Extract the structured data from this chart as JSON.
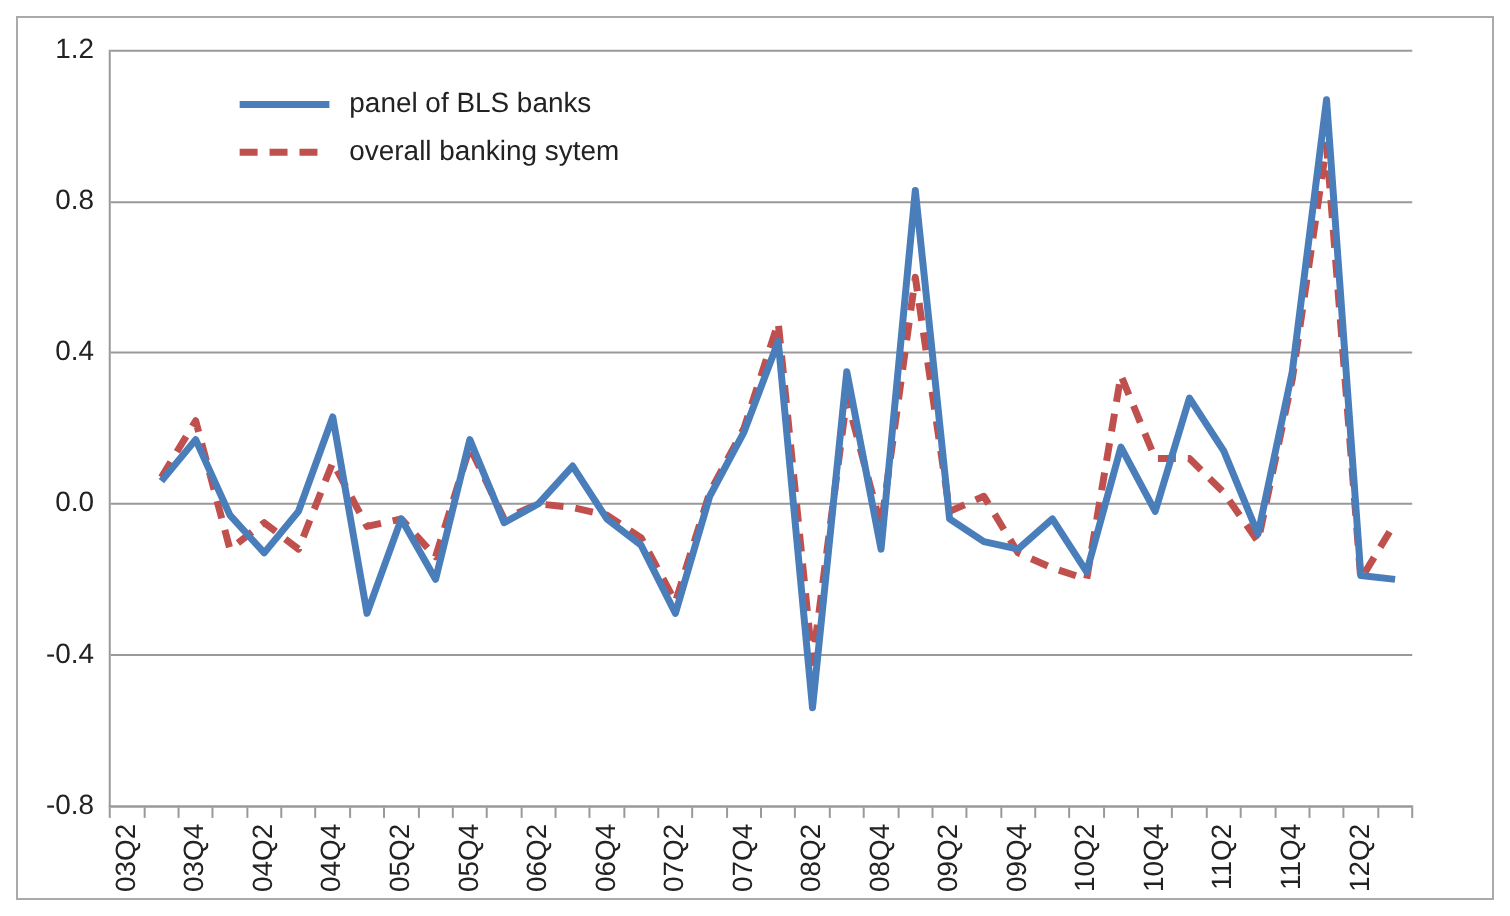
{
  "chart_data": {
    "type": "line",
    "categories": [
      "03Q2",
      null,
      "03Q4",
      null,
      "04Q2",
      null,
      "04Q4",
      null,
      "05Q2",
      null,
      "05Q4",
      null,
      "06Q2",
      null,
      "06Q4",
      null,
      "07Q2",
      null,
      "07Q4",
      null,
      "08Q2",
      null,
      "08Q4",
      null,
      "09Q2",
      null,
      "09Q4",
      null,
      "10Q2",
      null,
      "10Q4",
      null,
      "11Q2",
      null,
      "11Q4",
      null,
      "12Q2",
      null
    ],
    "series": [
      {
        "name": "panel of BLS banks",
        "color": "#4a7ebb",
        "line_style": "solid",
        "values": [
          null,
          0.06,
          0.17,
          -0.03,
          -0.13,
          -0.02,
          0.23,
          -0.29,
          -0.04,
          -0.2,
          0.17,
          -0.05,
          0.0,
          0.1,
          -0.04,
          -0.11,
          -0.29,
          0.02,
          0.19,
          0.43,
          -0.54,
          0.35,
          -0.12,
          0.83,
          -0.04,
          -0.1,
          -0.12,
          -0.04,
          -0.18,
          0.15,
          -0.02,
          0.28,
          0.14,
          -0.08,
          0.35,
          1.07,
          -0.19,
          -0.2
        ]
      },
      {
        "name": "overall banking sytem",
        "color": "#c0504d",
        "line_style": "dashed",
        "values": [
          null,
          0.07,
          0.22,
          -0.12,
          -0.05,
          -0.12,
          0.11,
          -0.06,
          -0.04,
          -0.14,
          0.15,
          -0.04,
          0.0,
          -0.01,
          -0.03,
          -0.09,
          -0.26,
          0.03,
          0.2,
          0.48,
          -0.42,
          0.28,
          -0.06,
          0.6,
          -0.02,
          0.02,
          -0.13,
          -0.17,
          -0.2,
          0.34,
          0.12,
          0.12,
          0.03,
          -0.1,
          0.33,
          0.95,
          -0.2,
          -0.05
        ]
      }
    ],
    "ylim": [
      -0.8,
      1.2
    ],
    "yticks": [
      {
        "value": -0.8,
        "label": "-0.8"
      },
      {
        "value": -0.4,
        "label": "-0.4"
      },
      {
        "value": 0,
        "label": "0.0"
      },
      {
        "value": 0.4,
        "label": "0.4"
      },
      {
        "value": 0.8,
        "label": "0.8"
      },
      {
        "value": 1.2,
        "label": "1.2"
      }
    ],
    "grid": "y",
    "legend": "top left",
    "marker": "none"
  }
}
